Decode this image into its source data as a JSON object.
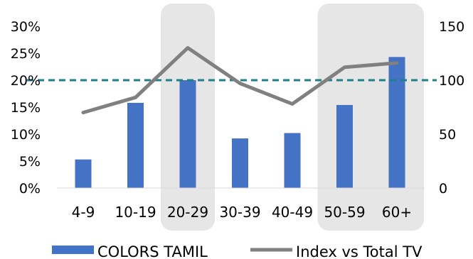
{
  "chart_data": {
    "type": "bar",
    "categories": [
      "4-9",
      "10-19",
      "20-29",
      "30-39",
      "40-49",
      "50-59",
      "60+"
    ],
    "series": [
      {
        "name": "COLORS TAMIL",
        "type": "bar",
        "axis": "left",
        "values": [
          5.3,
          15.8,
          20.0,
          9.2,
          10.2,
          15.4,
          24.3
        ]
      },
      {
        "name": "Index vs Total TV",
        "type": "line",
        "axis": "right",
        "values": [
          70,
          84,
          130,
          97,
          78,
          112,
          116
        ]
      }
    ],
    "left_axis": {
      "ylim": [
        0,
        30
      ],
      "ticks": [
        0,
        5,
        10,
        15,
        20,
        25,
        30
      ],
      "tick_labels": [
        "0%",
        "5%",
        "10%",
        "15%",
        "20%",
        "25%",
        "30%"
      ]
    },
    "right_axis": {
      "ylim": [
        0,
        150
      ],
      "ticks": [
        0,
        50,
        100,
        150
      ],
      "tick_labels": [
        "0",
        "50",
        "100",
        "150"
      ]
    },
    "reference_line": {
      "axis": "right",
      "value": 100,
      "style": "dashed",
      "color": "#1f7f8a"
    },
    "highlight_categories": [
      "20-29",
      "50-59",
      "60+"
    ],
    "highlight_color": "#e6e6e6",
    "bar_color": "#4472c4",
    "line_color": "#808080",
    "legend_position": "bottom",
    "grid": false
  }
}
